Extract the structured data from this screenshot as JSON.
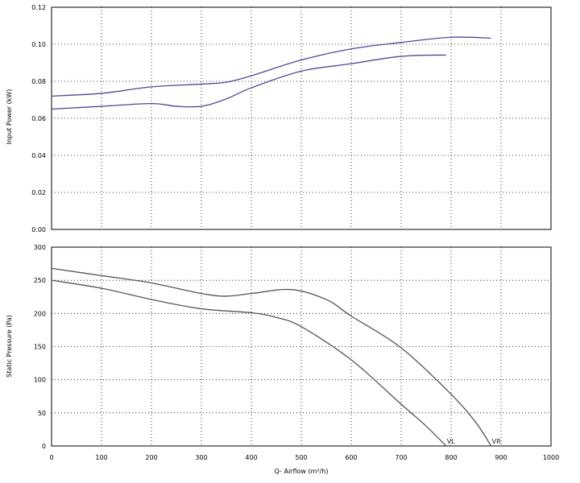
{
  "chart_data": [
    {
      "type": "line",
      "ylabel": "Input Power (kW)",
      "xlim": [
        0,
        1000
      ],
      "ylim": [
        0,
        0.12
      ],
      "x_ticks": [
        "0",
        "100",
        "200",
        "300",
        "400",
        "500",
        "600",
        "700",
        "800",
        "900",
        "1000"
      ],
      "y_ticks": [
        "0.00",
        "0.02",
        "0.04",
        "0.06",
        "0.08",
        "0.10",
        "0.12"
      ],
      "grid": true,
      "colors": {
        "series": "#4a4a9a"
      },
      "series": [
        {
          "x": [
            0,
            100,
            200,
            300,
            350,
            400,
            500,
            600,
            700,
            800,
            880
          ],
          "y": [
            0.072,
            0.0735,
            0.077,
            0.0785,
            0.0795,
            0.083,
            0.0915,
            0.0975,
            0.101,
            0.1038,
            0.1033
          ]
        },
        {
          "x": [
            0,
            100,
            200,
            250,
            300,
            350,
            400,
            500,
            600,
            700,
            790
          ],
          "y": [
            0.065,
            0.0665,
            0.068,
            0.0665,
            0.0665,
            0.0705,
            0.0765,
            0.0855,
            0.0895,
            0.0935,
            0.0942
          ]
        }
      ]
    },
    {
      "type": "line",
      "ylabel": "Static Pressure (Pa)",
      "xlabel": "Q- Airflow (m³/h)",
      "xlim": [
        0,
        1000
      ],
      "ylim": [
        0,
        300
      ],
      "x_ticks": [
        "0",
        "100",
        "200",
        "300",
        "400",
        "500",
        "600",
        "700",
        "800",
        "900",
        "1000"
      ],
      "y_ticks": [
        "0",
        "50",
        "100",
        "150",
        "200",
        "250",
        "300"
      ],
      "grid": true,
      "colors": {
        "series": "#555555"
      },
      "series": [
        {
          "label": "VR",
          "x": [
            0,
            100,
            200,
            300,
            350,
            400,
            480,
            550,
            600,
            700,
            800,
            850,
            880
          ],
          "y": [
            268,
            257,
            246,
            230,
            226,
            230,
            236,
            221,
            196,
            148,
            78,
            35,
            0
          ]
        },
        {
          "label": "VL",
          "x": [
            0,
            100,
            200,
            300,
            400,
            450,
            500,
            600,
            700,
            750,
            790
          ],
          "y": [
            250,
            238,
            221,
            207,
            201,
            194,
            180,
            130,
            63,
            30,
            0
          ]
        }
      ]
    }
  ]
}
